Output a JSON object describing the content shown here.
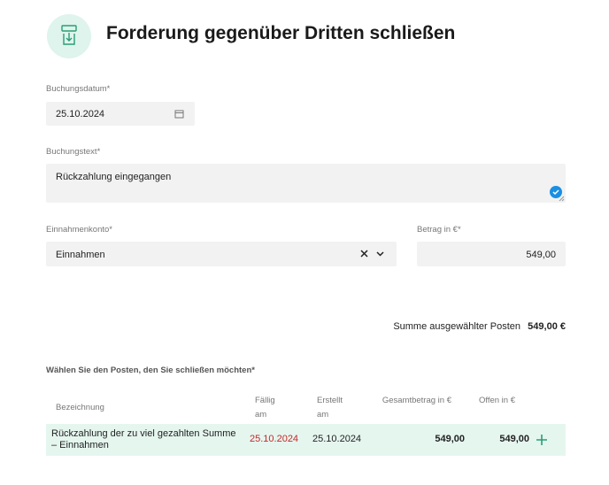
{
  "header": {
    "title": "Forderung gegenüber Dritten schließen"
  },
  "form": {
    "booking_date": {
      "label": "Buchungsdatum*",
      "value": "25.10.2024"
    },
    "booking_text": {
      "label": "Buchungstext*",
      "value": "Rückzahlung eingegangen"
    },
    "income_account": {
      "label": "Einnahmenkonto*",
      "value": "Einnahmen"
    },
    "amount": {
      "label": "Betrag in €*",
      "value": "549,00"
    }
  },
  "summary": {
    "label": "Summe ausgewählter Posten",
    "value": "549,00 €"
  },
  "table": {
    "caption": "Wählen Sie den Posten, den Sie schließen möchten*",
    "columns": [
      "Bezeichnung",
      "Fällig am",
      "Erstellt am",
      "Gesamtbetrag in €",
      "Offen in €"
    ],
    "rows": [
      [
        "Rückzahlung der zu viel gezahlten Summe – Einnahmen",
        "25.10.2024",
        "25.10.2024",
        "549,00",
        "549,00"
      ]
    ]
  }
}
